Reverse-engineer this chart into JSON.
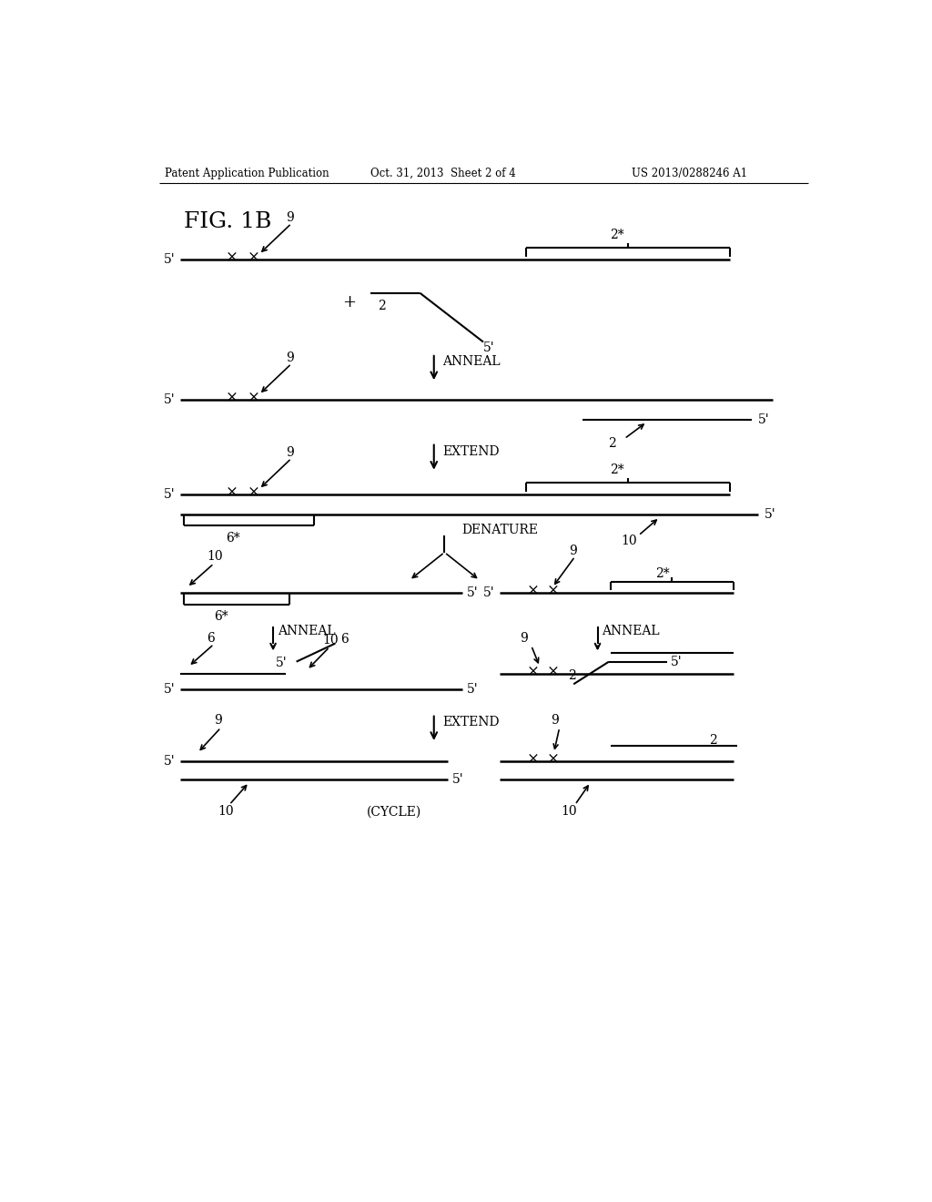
{
  "header_left": "Patent Application Publication",
  "header_mid": "Oct. 31, 2013  Sheet 2 of 4",
  "header_right": "US 2013/0288246 A1",
  "fig_label": "FIG. 1B",
  "bg_color": "#ffffff",
  "line_color": "#000000"
}
